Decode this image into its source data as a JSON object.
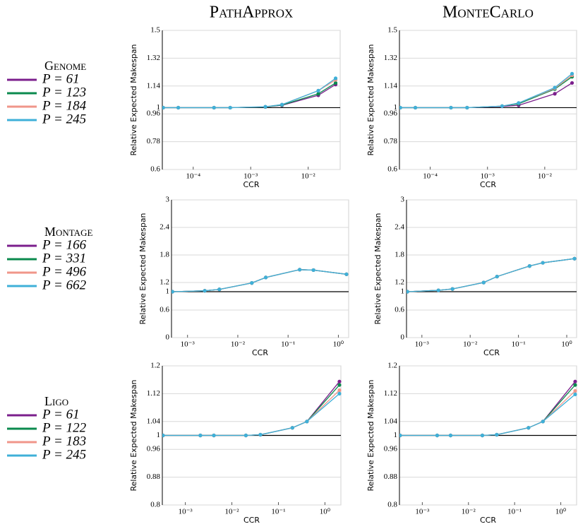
{
  "chart_data": [
    {
      "type": "line",
      "title": "PathApprox",
      "legend_title": "Genome",
      "xlabel": "CCR",
      "ylabel": "Relative Expected Makespan",
      "log_x": true,
      "grid": true,
      "hline": 1,
      "x": [
        3e-05,
        5.5e-05,
        0.00023,
        0.00044,
        0.0018,
        0.0035,
        0.015,
        0.03
      ],
      "xlim": [
        2.9e-05,
        0.036
      ],
      "xticks": [
        {
          "value": 0.0001,
          "label": "10⁻⁴"
        },
        {
          "value": 0.001,
          "label": "10⁻³"
        },
        {
          "value": 0.01,
          "label": "10⁻²"
        }
      ],
      "ylim": [
        0.6,
        1.5
      ],
      "yticks": [
        0.6,
        0.78,
        0.96,
        1,
        1.14,
        1.32,
        1.5
      ],
      "series": [
        {
          "name": "P = 61",
          "color": "#7b1f8c",
          "values": [
            1,
            1,
            1,
            1,
            1.005,
            1.015,
            1.08,
            1.15
          ]
        },
        {
          "name": "P = 123",
          "color": "#0b8a4e",
          "values": [
            1,
            1,
            1,
            1,
            1.005,
            1.017,
            1.09,
            1.16
          ]
        },
        {
          "name": "P = 184",
          "color": "#f0968a",
          "values": [
            1,
            1,
            1,
            1,
            1.006,
            1.02,
            1.11,
            1.18
          ]
        },
        {
          "name": "P = 245",
          "color": "#3fb0d8",
          "values": [
            1,
            1,
            1,
            1,
            1.006,
            1.02,
            1.11,
            1.19
          ]
        }
      ]
    },
    {
      "type": "line",
      "title": "MonteCarlo",
      "xlabel": "CCR",
      "ylabel": "Relative Expected Makespan",
      "log_x": true,
      "grid": true,
      "hline": 1,
      "x": [
        3e-05,
        5.5e-05,
        0.00023,
        0.00044,
        0.0018,
        0.0035,
        0.015,
        0.03
      ],
      "xlim": [
        2.9e-05,
        0.036
      ],
      "xticks": [
        {
          "value": 0.0001,
          "label": "10⁻⁴"
        },
        {
          "value": 0.001,
          "label": "10⁻³"
        },
        {
          "value": 0.01,
          "label": "10⁻²"
        }
      ],
      "ylim": [
        0.6,
        1.5
      ],
      "yticks": [
        0.6,
        0.78,
        0.96,
        1,
        1.14,
        1.32,
        1.5
      ],
      "series": [
        {
          "color": "#7b1f8c",
          "values": [
            1,
            1,
            1,
            1,
            1.008,
            1.015,
            1.09,
            1.16
          ]
        },
        {
          "color": "#0b8a4e",
          "values": [
            1,
            1,
            1,
            1,
            1.01,
            1.025,
            1.12,
            1.2
          ]
        },
        {
          "color": "#f0968a",
          "values": [
            1,
            1,
            1,
            1,
            1.01,
            1.03,
            1.125,
            1.21
          ]
        },
        {
          "color": "#3fb0d8",
          "values": [
            1,
            1,
            1,
            1,
            1.01,
            1.03,
            1.13,
            1.22
          ]
        }
      ]
    },
    {
      "type": "line",
      "legend_title": "Montage",
      "xlabel": "CCR",
      "ylabel": "Relative Expected Makespan",
      "log_x": true,
      "grid": true,
      "hline": 1,
      "x": [
        0.0005,
        0.0022,
        0.0043,
        0.019,
        0.036,
        0.17,
        0.32,
        1.45
      ],
      "xlim": [
        0.00048,
        1.6
      ],
      "xticks": [
        {
          "value": 0.001,
          "label": "10⁻³"
        },
        {
          "value": 0.01,
          "label": "10⁻²"
        },
        {
          "value": 0.1,
          "label": "10⁻¹"
        },
        {
          "value": 1,
          "label": "10⁰"
        }
      ],
      "ylim": [
        0,
        3
      ],
      "yticks": [
        0,
        0.6,
        1,
        1.2,
        1.8,
        2.4,
        3
      ],
      "series": [
        {
          "name": "P = 166",
          "color": "#7b1f8c",
          "values": [
            1,
            1.02,
            1.05,
            1.19,
            1.31,
            1.48,
            1.47,
            1.38
          ]
        },
        {
          "name": "P = 331",
          "color": "#0b8a4e",
          "values": [
            1,
            1.02,
            1.05,
            1.19,
            1.31,
            1.48,
            1.47,
            1.38
          ]
        },
        {
          "name": "P = 496",
          "color": "#f0968a",
          "values": [
            1,
            1.02,
            1.05,
            1.19,
            1.31,
            1.48,
            1.47,
            1.38
          ]
        },
        {
          "name": "P = 662",
          "color": "#3fb0d8",
          "values": [
            1,
            1.02,
            1.05,
            1.19,
            1.31,
            1.48,
            1.47,
            1.38
          ]
        }
      ]
    },
    {
      "type": "line",
      "xlabel": "CCR",
      "ylabel": "Relative Expected Makespan",
      "log_x": true,
      "grid": true,
      "hline": 1,
      "x": [
        0.0005,
        0.0022,
        0.0043,
        0.019,
        0.036,
        0.17,
        0.32,
        1.45
      ],
      "xlim": [
        0.00048,
        1.6
      ],
      "xticks": [
        {
          "value": 0.001,
          "label": "10⁻³"
        },
        {
          "value": 0.01,
          "label": "10⁻²"
        },
        {
          "value": 0.1,
          "label": "10⁻¹"
        },
        {
          "value": 1,
          "label": "10⁰"
        }
      ],
      "ylim": [
        0,
        3
      ],
      "yticks": [
        0,
        0.6,
        1,
        1.2,
        1.8,
        2.4,
        3
      ],
      "series": [
        {
          "color": "#7b1f8c",
          "values": [
            1,
            1.03,
            1.06,
            1.2,
            1.33,
            1.56,
            1.63,
            1.72
          ]
        },
        {
          "color": "#0b8a4e",
          "values": [
            1,
            1.03,
            1.06,
            1.2,
            1.33,
            1.56,
            1.63,
            1.72
          ]
        },
        {
          "color": "#f0968a",
          "values": [
            1,
            1.03,
            1.06,
            1.2,
            1.33,
            1.56,
            1.63,
            1.72
          ]
        },
        {
          "color": "#3fb0d8",
          "values": [
            1,
            1.03,
            1.06,
            1.2,
            1.33,
            1.56,
            1.63,
            1.72
          ]
        }
      ]
    },
    {
      "type": "line",
      "legend_title": "Ligo",
      "xlabel": "CCR",
      "ylabel": "Relative Expected Makespan",
      "log_x": true,
      "grid": true,
      "hline": 1,
      "x": [
        0.00033,
        0.0021,
        0.0041,
        0.02,
        0.041,
        0.2,
        0.41,
        2.05
      ],
      "xlim": [
        0.00032,
        2.2
      ],
      "xticks": [
        {
          "value": 0.001,
          "label": "10⁻³"
        },
        {
          "value": 0.01,
          "label": "10⁻²"
        },
        {
          "value": 0.1,
          "label": "10⁻¹"
        },
        {
          "value": 1,
          "label": "10⁰"
        }
      ],
      "ylim": [
        0.8,
        1.2
      ],
      "yticks": [
        0.8,
        0.88,
        0.96,
        1,
        1.04,
        1.12,
        1.2
      ],
      "series": [
        {
          "name": "P = 61",
          "color": "#7b1f8c",
          "values": [
            1,
            1,
            1,
            1,
            1.002,
            1.022,
            1.04,
            1.155
          ]
        },
        {
          "name": "P = 122",
          "color": "#0b8a4e",
          "values": [
            1,
            1,
            1,
            1,
            1.002,
            1.022,
            1.04,
            1.145
          ]
        },
        {
          "name": "P = 183",
          "color": "#f0968a",
          "values": [
            1,
            1,
            1,
            1,
            1.002,
            1.022,
            1.04,
            1.13
          ]
        },
        {
          "name": "P = 245",
          "color": "#3fb0d8",
          "values": [
            1,
            1,
            1,
            1,
            1.002,
            1.022,
            1.04,
            1.12
          ]
        }
      ]
    },
    {
      "type": "line",
      "xlabel": "CCR",
      "ylabel": "Relative Expected Makespan",
      "log_x": true,
      "grid": true,
      "hline": 1,
      "x": [
        0.00033,
        0.0021,
        0.0041,
        0.02,
        0.041,
        0.2,
        0.41,
        2.05
      ],
      "xlim": [
        0.00032,
        2.2
      ],
      "xticks": [
        {
          "value": 0.001,
          "label": "10⁻³"
        },
        {
          "value": 0.01,
          "label": "10⁻²"
        },
        {
          "value": 0.1,
          "label": "10⁻¹"
        },
        {
          "value": 1,
          "label": "10⁰"
        }
      ],
      "ylim": [
        0.8,
        1.2
      ],
      "yticks": [
        0.8,
        0.88,
        0.96,
        1,
        1.04,
        1.12,
        1.2
      ],
      "series": [
        {
          "color": "#7b1f8c",
          "values": [
            1,
            1,
            1,
            1,
            1.002,
            1.022,
            1.04,
            1.155
          ]
        },
        {
          "color": "#0b8a4e",
          "values": [
            1,
            1,
            1,
            1,
            1.002,
            1.022,
            1.04,
            1.145
          ]
        },
        {
          "color": "#f0968a",
          "values": [
            1,
            1,
            1,
            1,
            1.002,
            1.022,
            1.04,
            1.128
          ]
        },
        {
          "color": "#3fb0d8",
          "values": [
            1,
            1,
            1,
            1,
            1.002,
            1.022,
            1.04,
            1.118
          ]
        }
      ]
    }
  ]
}
